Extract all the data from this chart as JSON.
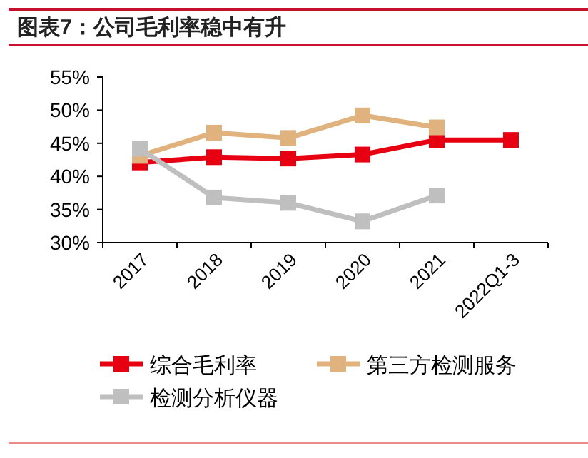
{
  "chart_data": {
    "type": "line",
    "title": "图表7：公司毛利率稳中有升",
    "categories": [
      "2017",
      "2018",
      "2019",
      "2020",
      "2021",
      "2022Q1-3"
    ],
    "series": [
      {
        "name": "综合毛利率",
        "color": "#e60012",
        "values": [
          42.1,
          42.9,
          42.7,
          43.3,
          45.5,
          45.5
        ]
      },
      {
        "name": "第三方检测服务",
        "color": "#e0b27e",
        "values": [
          43.1,
          46.6,
          45.8,
          49.2,
          47.4,
          null
        ]
      },
      {
        "name": "检测分析仪器",
        "color": "#bfbfbf",
        "values": [
          44.2,
          36.8,
          36.0,
          33.2,
          37.1,
          null
        ]
      }
    ],
    "ylim": [
      30,
      55
    ],
    "yticks": [
      {
        "value": 30,
        "label": "30%"
      },
      {
        "value": 35,
        "label": "35%"
      },
      {
        "value": 40,
        "label": "40%"
      },
      {
        "value": 45,
        "label": "45%"
      },
      {
        "value": 50,
        "label": "50%"
      },
      {
        "value": 55,
        "label": "55%"
      }
    ],
    "grid": false,
    "legend": "bottom",
    "marker": "square",
    "line_style": "solid"
  }
}
